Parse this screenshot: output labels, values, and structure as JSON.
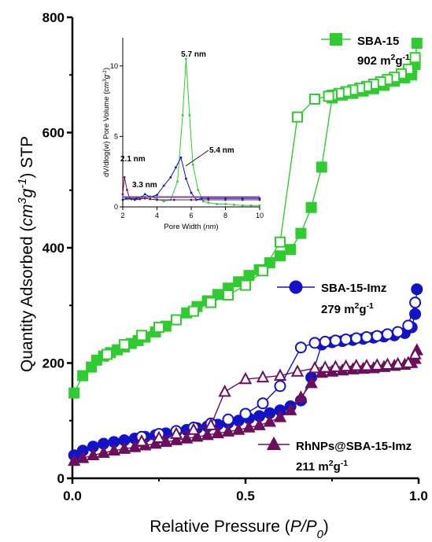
{
  "chart_data": {
    "type": "line",
    "main": {
      "xlabel": "Relative Pressure (P/P0)",
      "ylabel": "Quantity Adsorbed (cm3g-1) STP",
      "xlim": [
        0,
        1.0
      ],
      "ylim": [
        0,
        800
      ],
      "x_ticks": [
        "0.0",
        "0.5",
        "1.0"
      ],
      "y_ticks": [
        "0",
        "200",
        "400",
        "600",
        "800"
      ],
      "grid": false,
      "series": [
        {
          "name": "SBA-15",
          "surface_area": "902",
          "color": "#2ecc2e",
          "marker": "square",
          "adsorption": {
            "x": [
              0.005,
              0.03,
              0.055,
              0.07,
              0.09,
              0.11,
              0.13,
              0.15,
              0.17,
              0.19,
              0.21,
              0.24,
              0.27,
              0.3,
              0.33,
              0.36,
              0.39,
              0.42,
              0.45,
              0.48,
              0.51,
              0.54,
              0.57,
              0.6,
              0.63,
              0.66,
              0.69,
              0.72,
              0.75,
              0.78,
              0.81,
              0.84,
              0.87,
              0.9,
              0.93,
              0.96,
              0.98,
              0.99,
              0.995
            ],
            "y": [
              148,
              178,
              193,
              205,
              212,
              218,
              223,
              228,
              234,
              239,
              245,
              254,
              264,
              275,
              287,
              298,
              308,
              319,
              330,
              341,
              352,
              362,
              374,
              386,
              397,
              425,
              470,
              540,
              660,
              665,
              668,
              672,
              676,
              682,
              689,
              695,
              700,
              718,
              755
            ]
          },
          "desorption": {
            "x": [
              0.99,
              0.97,
              0.95,
              0.93,
              0.91,
              0.89,
              0.87,
              0.85,
              0.83,
              0.81,
              0.79,
              0.77,
              0.75,
              0.74,
              0.7,
              0.65,
              0.6,
              0.55,
              0.5,
              0.45,
              0.4,
              0.35,
              0.3,
              0.25,
              0.2,
              0.15,
              0.1
            ],
            "y": [
              730,
              710,
              702,
              696,
              692,
              688,
              684,
              680,
              677,
              674,
              671,
              668,
              665,
              663,
              658,
              627,
              410,
              360,
              335,
              318,
              305,
              290,
              275,
              262,
              248,
              232,
              215
            ]
          }
        },
        {
          "name": "SBA-15-Imz",
          "surface_area": "279",
          "color": "#1212c8",
          "marker": "circle",
          "adsorption": {
            "x": [
              0.005,
              0.03,
              0.06,
              0.09,
              0.12,
              0.15,
              0.18,
              0.21,
              0.24,
              0.27,
              0.3,
              0.33,
              0.36,
              0.39,
              0.42,
              0.45,
              0.48,
              0.51,
              0.54,
              0.57,
              0.6,
              0.63,
              0.66,
              0.69,
              0.72,
              0.75,
              0.78,
              0.81,
              0.84,
              0.87,
              0.9,
              0.93,
              0.96,
              0.98,
              0.99,
              0.995
            ],
            "y": [
              40,
              48,
              55,
              60,
              63,
              66,
              69,
              72,
              75,
              78,
              81,
              84,
              87,
              90,
              93,
              96,
              100,
              104,
              108,
              113,
              118,
              125,
              135,
              175,
              232,
              236,
              238,
              240,
              242,
              244,
              246,
              248,
              252,
              262,
              285,
              328
            ]
          },
          "desorption": {
            "x": [
              0.99,
              0.97,
              0.94,
              0.91,
              0.88,
              0.85,
              0.82,
              0.79,
              0.76,
              0.73,
              0.7,
              0.66,
              0.6,
              0.55,
              0.5,
              0.45,
              0.4,
              0.35,
              0.3,
              0.25,
              0.2
            ],
            "y": [
              305,
              265,
              254,
              250,
              247,
              245,
              243,
              241,
              239,
              237,
              235,
              227,
              160,
              130,
              112,
              102,
              95,
              88,
              82,
              77,
              72
            ]
          }
        },
        {
          "name": "RhNPs@SBA-15-Imz",
          "surface_area": "211",
          "color": "#6b0f5c",
          "marker": "triangle",
          "adsorption": {
            "x": [
              0.005,
              0.03,
              0.06,
              0.09,
              0.12,
              0.15,
              0.18,
              0.21,
              0.24,
              0.27,
              0.3,
              0.33,
              0.36,
              0.39,
              0.42,
              0.45,
              0.48,
              0.51,
              0.54,
              0.57,
              0.6,
              0.63,
              0.66,
              0.69,
              0.72,
              0.75,
              0.78,
              0.81,
              0.84,
              0.87,
              0.9,
              0.93,
              0.96,
              0.98,
              0.99,
              0.995
            ],
            "y": [
              30,
              35,
              40,
              44,
              48,
              51,
              54,
              57,
              60,
              63,
              66,
              69,
              72,
              75,
              78,
              81,
              84,
              88,
              92,
              98,
              106,
              118,
              140,
              165,
              183,
              185,
              187,
              189,
              190,
              191,
              193,
              195,
              197,
              200,
              207,
              222
            ]
          },
          "desorption": {
            "x": [
              0.99,
              0.97,
              0.94,
              0.91,
              0.88,
              0.85,
              0.82,
              0.79,
              0.76,
              0.73,
              0.7,
              0.65,
              0.6,
              0.55,
              0.5,
              0.44,
              0.4,
              0.35,
              0.3,
              0.25,
              0.2
            ],
            "y": [
              215,
              200,
              198,
              197,
              196,
              195,
              195,
              194,
              193,
              192,
              191,
              185,
              178,
              175,
              172,
              150,
              92,
              84,
              77,
              70,
              64
            ]
          }
        }
      ]
    },
    "inset": {
      "xlabel": "Pore Width (nm)",
      "ylabel": "dV/dlog(w) Pore Volume (cm3g-1)",
      "xlim": [
        2,
        10
      ],
      "ylim": [
        0,
        12
      ],
      "x_ticks": [
        "2",
        "4",
        "6",
        "8",
        "10"
      ],
      "y_ticks": [
        "0",
        "5",
        "10"
      ],
      "annotations": [
        "5.7 nm",
        "5.4 nm",
        "2.1 nm",
        "3.3 nm"
      ],
      "series": [
        {
          "name": "SBA-15",
          "color": "#2ecc2e",
          "x": [
            2,
            2.3,
            2.6,
            3,
            3.3,
            3.6,
            4,
            4.4,
            4.8,
            5.2,
            5.5,
            5.7,
            5.9,
            6.1,
            6.4,
            6.7,
            7,
            7.5,
            8,
            8.5,
            9,
            9.5,
            10
          ],
          "y": [
            0.5,
            0.55,
            0.6,
            0.6,
            0.7,
            0.75,
            0.55,
            0.4,
            0.5,
            1.8,
            6.5,
            10.5,
            6.5,
            3.0,
            1.2,
            0.4,
            0.3,
            0.2,
            0.2,
            0.15,
            0.1,
            0.1,
            0.1
          ]
        },
        {
          "name": "SBA-15-Imz",
          "color": "#1212c8",
          "x": [
            2,
            2.2,
            2.5,
            2.8,
            3.1,
            3.3,
            3.6,
            4,
            4.4,
            4.8,
            5.1,
            5.4,
            5.7,
            6,
            6.3,
            6.6,
            7,
            8,
            9,
            10
          ],
          "y": [
            0.5,
            0.6,
            0.55,
            0.6,
            0.7,
            0.9,
            0.7,
            0.85,
            1.5,
            2.1,
            2.8,
            3.5,
            2.0,
            1.0,
            0.5,
            0.6,
            0.6,
            0.6,
            0.6,
            0.6
          ]
        },
        {
          "name": "RhNPs@SBA-15-Imz",
          "color": "#6b0f5c",
          "x": [
            2,
            2.1,
            2.25,
            2.4,
            2.7,
            3,
            3.3,
            3.6,
            4,
            5,
            6,
            7,
            8,
            9,
            10
          ],
          "y": [
            0.9,
            2.1,
            1.2,
            0.6,
            0.5,
            0.55,
            0.6,
            0.55,
            0.5,
            0.5,
            0.5,
            0.5,
            0.5,
            0.5,
            0.5
          ]
        },
        {
          "name": "baseline",
          "color": "#7a4a9a",
          "x": [
            2,
            10
          ],
          "y": [
            0.7,
            0.7
          ]
        }
      ]
    }
  }
}
